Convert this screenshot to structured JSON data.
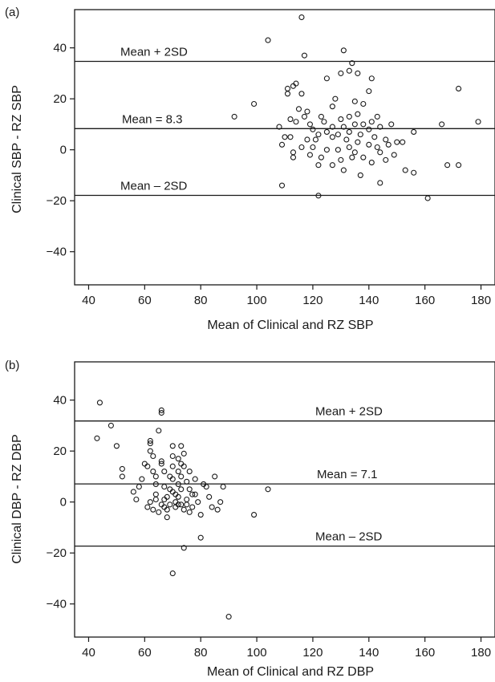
{
  "colors": {
    "ink": "#1a1a1a",
    "background": "#ffffff"
  },
  "chart_data": [
    {
      "type": "scatter",
      "panel_label": "(a)",
      "xlabel": "Mean of Clinical and RZ SBP",
      "ylabel": "Clinical SBP - RZ SBP",
      "xlim": [
        35,
        185
      ],
      "ylim": [
        -53,
        55
      ],
      "xticks": [
        40,
        60,
        80,
        100,
        120,
        140,
        160,
        180
      ],
      "yticks": [
        -40,
        -20,
        0,
        20,
        40
      ],
      "grid": false,
      "reference_lines": [
        {
          "label": "Mean + 2SD",
          "y": 34.7
        },
        {
          "label": "Mean = 8.3",
          "y": 8.3
        },
        {
          "label": "Mean – 2SD",
          "y": -17.9
        }
      ],
      "points": [
        [
          116,
          52
        ],
        [
          104,
          43
        ],
        [
          131,
          39
        ],
        [
          117,
          37
        ],
        [
          134,
          34
        ],
        [
          133,
          31
        ],
        [
          130,
          30
        ],
        [
          136,
          30
        ],
        [
          141,
          28
        ],
        [
          125,
          28
        ],
        [
          99,
          18
        ],
        [
          92,
          13
        ],
        [
          111,
          24
        ],
        [
          114,
          26
        ],
        [
          113,
          25
        ],
        [
          111,
          22
        ],
        [
          116,
          22
        ],
        [
          140,
          23
        ],
        [
          128,
          20
        ],
        [
          135,
          19
        ],
        [
          138,
          18
        ],
        [
          127,
          17
        ],
        [
          115,
          16
        ],
        [
          118,
          15
        ],
        [
          117,
          13
        ],
        [
          123,
          13
        ],
        [
          112,
          12
        ],
        [
          130,
          12
        ],
        [
          133,
          13
        ],
        [
          136,
          14
        ],
        [
          143,
          13
        ],
        [
          138,
          10
        ],
        [
          141,
          11
        ],
        [
          114,
          11
        ],
        [
          119,
          10
        ],
        [
          124,
          11
        ],
        [
          127,
          9
        ],
        [
          131,
          9
        ],
        [
          135,
          10
        ],
        [
          140,
          8
        ],
        [
          144,
          9
        ],
        [
          148,
          10
        ],
        [
          108,
          9
        ],
        [
          120,
          8
        ],
        [
          125,
          7
        ],
        [
          129,
          6
        ],
        [
          133,
          7
        ],
        [
          137,
          6
        ],
        [
          142,
          5
        ],
        [
          146,
          4
        ],
        [
          150,
          3
        ],
        [
          152,
          3
        ],
        [
          156,
          7
        ],
        [
          122,
          6
        ],
        [
          127,
          5
        ],
        [
          118,
          4
        ],
        [
          121,
          4
        ],
        [
          132,
          4
        ],
        [
          136,
          3
        ],
        [
          140,
          2
        ],
        [
          143,
          1
        ],
        [
          147,
          2
        ],
        [
          110,
          5
        ],
        [
          112,
          5
        ],
        [
          109,
          2
        ],
        [
          116,
          1
        ],
        [
          120,
          1
        ],
        [
          125,
          0
        ],
        [
          129,
          0
        ],
        [
          133,
          1
        ],
        [
          135,
          -1
        ],
        [
          144,
          -1
        ],
        [
          149,
          -2
        ],
        [
          113,
          -1
        ],
        [
          113,
          -3
        ],
        [
          119,
          -2
        ],
        [
          123,
          -3
        ],
        [
          130,
          -4
        ],
        [
          134,
          -3
        ],
        [
          138,
          -3
        ],
        [
          141,
          -5
        ],
        [
          146,
          -4
        ],
        [
          122,
          -6
        ],
        [
          127,
          -6
        ],
        [
          131,
          -8
        ],
        [
          137,
          -10
        ],
        [
          144,
          -13
        ],
        [
          153,
          -8
        ],
        [
          156,
          -9
        ],
        [
          161,
          -19
        ],
        [
          109,
          -14
        ],
        [
          122,
          -18
        ],
        [
          166,
          10
        ],
        [
          168,
          -6
        ],
        [
          172,
          -6
        ],
        [
          172,
          24
        ],
        [
          179,
          11
        ],
        [
          185,
          5
        ]
      ]
    },
    {
      "type": "scatter",
      "panel_label": "(b)",
      "xlabel": "Mean of Clinical and RZ DBP",
      "ylabel": "Clinical DBP - RZ DBP",
      "xlim": [
        35,
        185
      ],
      "ylim": [
        -53,
        55
      ],
      "xticks": [
        40,
        60,
        80,
        100,
        120,
        140,
        160,
        180
      ],
      "yticks": [
        -40,
        -20,
        0,
        20,
        40
      ],
      "grid": false,
      "reference_lines": [
        {
          "label": "Mean + 2SD",
          "y": 31.8
        },
        {
          "label": "Mean = 7.1",
          "y": 7.1
        },
        {
          "label": "Mean – 2SD",
          "y": -17.3
        }
      ],
      "points": [
        [
          44,
          39
        ],
        [
          43,
          25
        ],
        [
          48,
          30
        ],
        [
          50,
          22
        ],
        [
          52,
          13
        ],
        [
          52,
          10
        ],
        [
          56,
          4
        ],
        [
          57,
          1
        ],
        [
          58,
          6
        ],
        [
          59,
          9
        ],
        [
          60,
          15
        ],
        [
          61,
          -2
        ],
        [
          61,
          14
        ],
        [
          62,
          24
        ],
        [
          62,
          23
        ],
        [
          62,
          20
        ],
        [
          63,
          18
        ],
        [
          63,
          12
        ],
        [
          64,
          10
        ],
        [
          64,
          7
        ],
        [
          64,
          3
        ],
        [
          65,
          28
        ],
        [
          66,
          36
        ],
        [
          66,
          35
        ],
        [
          66,
          16
        ],
        [
          66,
          15
        ],
        [
          67,
          12
        ],
        [
          67,
          6
        ],
        [
          67,
          1
        ],
        [
          67,
          -2
        ],
        [
          68,
          -3
        ],
        [
          68,
          -6
        ],
        [
          69,
          10
        ],
        [
          69,
          5
        ],
        [
          69,
          -1
        ],
        [
          70,
          22
        ],
        [
          70,
          18
        ],
        [
          70,
          14
        ],
        [
          70,
          9
        ],
        [
          70,
          4
        ],
        [
          71,
          3
        ],
        [
          71,
          -2
        ],
        [
          72,
          17
        ],
        [
          72,
          12
        ],
        [
          72,
          7
        ],
        [
          72,
          2
        ],
        [
          72,
          -1
        ],
        [
          73,
          22
        ],
        [
          73,
          15
        ],
        [
          73,
          10
        ],
        [
          73,
          5
        ],
        [
          74,
          -3
        ],
        [
          74,
          19
        ],
        [
          74,
          14
        ],
        [
          75,
          8
        ],
        [
          75,
          1
        ],
        [
          75,
          -1
        ],
        [
          76,
          12
        ],
        [
          76,
          5
        ],
        [
          76,
          -4
        ],
        [
          77,
          3
        ],
        [
          77,
          -2
        ],
        [
          78,
          9
        ],
        [
          78,
          3
        ],
        [
          79,
          0
        ],
        [
          80,
          -5
        ],
        [
          80,
          -14
        ],
        [
          81,
          7
        ],
        [
          82,
          6
        ],
        [
          83,
          2
        ],
        [
          84,
          -2
        ],
        [
          85,
          10
        ],
        [
          86,
          -3
        ],
        [
          87,
          0
        ],
        [
          88,
          6
        ],
        [
          90,
          -45
        ],
        [
          99,
          -5
        ],
        [
          104,
          5
        ],
        [
          70,
          -28
        ],
        [
          74,
          -18
        ],
        [
          62,
          0
        ],
        [
          63,
          -3
        ],
        [
          64,
          1
        ],
        [
          65,
          -4
        ],
        [
          66,
          -1
        ],
        [
          68,
          2
        ],
        [
          71,
          0
        ],
        [
          73,
          -1
        ]
      ]
    }
  ]
}
